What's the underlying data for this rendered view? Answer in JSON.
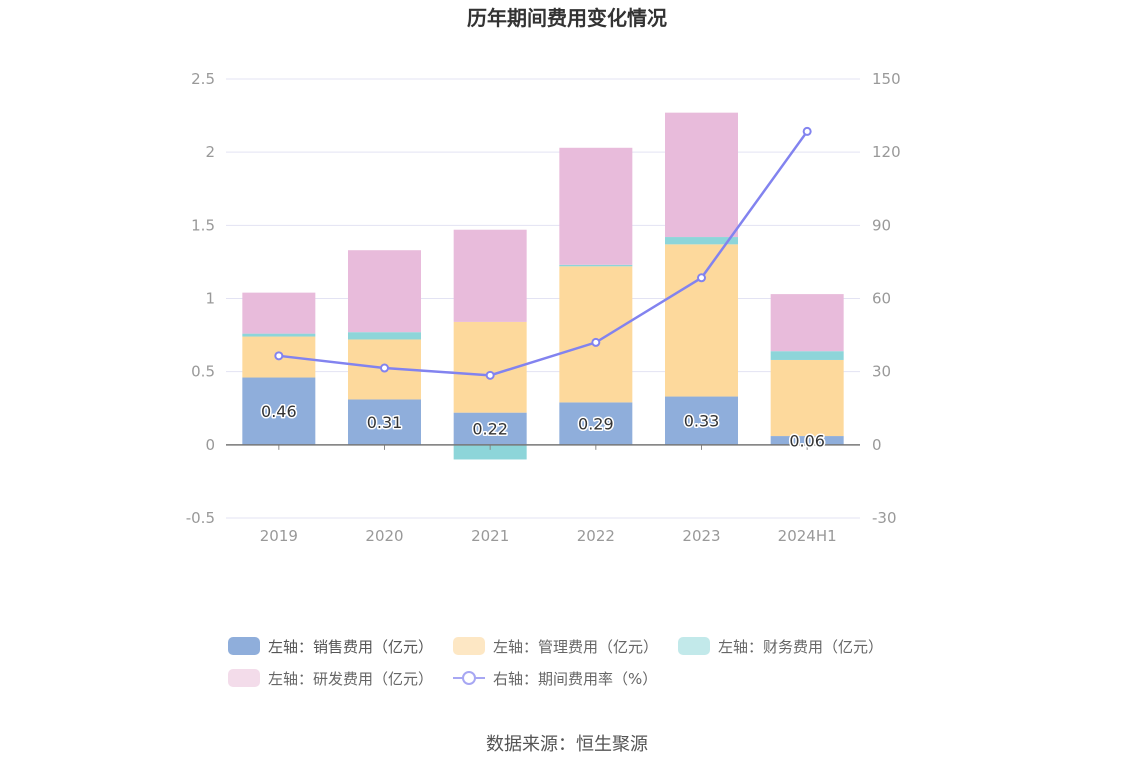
{
  "chart_data": {
    "type": "bar",
    "title": "历年期间费用变化情况",
    "categories": [
      "2019",
      "2020",
      "2021",
      "2022",
      "2023",
      "2024H1"
    ],
    "left_axis": {
      "ticks": [
        "2.5",
        "2",
        "1.5",
        "1",
        "0.5",
        "0",
        "-0.5"
      ],
      "ylim": [
        -0.5,
        2.5
      ]
    },
    "right_axis": {
      "ticks": [
        "150",
        "120",
        "90",
        "60",
        "30",
        "0",
        "-30"
      ],
      "ylim": [
        -30,
        150
      ]
    },
    "series": [
      {
        "name": "左轴：销售费用（亿元）",
        "values": [
          0.46,
          0.31,
          0.22,
          0.29,
          0.33,
          0.06
        ],
        "labels": [
          "0.46",
          "0.31",
          "0.22",
          "0.29",
          "0.33",
          "0.06"
        ],
        "color": "#8faedb"
      },
      {
        "name": "左轴：管理费用（亿元）",
        "values": [
          0.28,
          0.41,
          0.62,
          0.93,
          1.04,
          0.52
        ],
        "color": "#fdd99c"
      },
      {
        "name": "左轴：财务费用（亿元）",
        "values": [
          0.02,
          0.05,
          -0.1,
          0.01,
          0.05,
          0.06
        ],
        "color": "#8dd5d9"
      },
      {
        "name": "左轴：研发费用（亿元）",
        "values": [
          0.28,
          0.56,
          0.63,
          0.8,
          0.85,
          0.39
        ],
        "color": "#e8bbdb"
      },
      {
        "name": "右轴：期间费用率（%）",
        "type": "line",
        "values": [
          36.5,
          31.5,
          28.5,
          42.0,
          68.5,
          128.5
        ],
        "color": "#8283ef"
      }
    ],
    "grid": true,
    "legend_position": "bottom"
  },
  "legend": {
    "items": [
      "左轴：销售费用（亿元）",
      "左轴：管理费用（亿元）",
      "左轴：财务费用（亿元）",
      "左轴：研发费用（亿元）",
      "右轴：期间费用率（%）"
    ]
  },
  "source": "数据来源：恒生聚源"
}
